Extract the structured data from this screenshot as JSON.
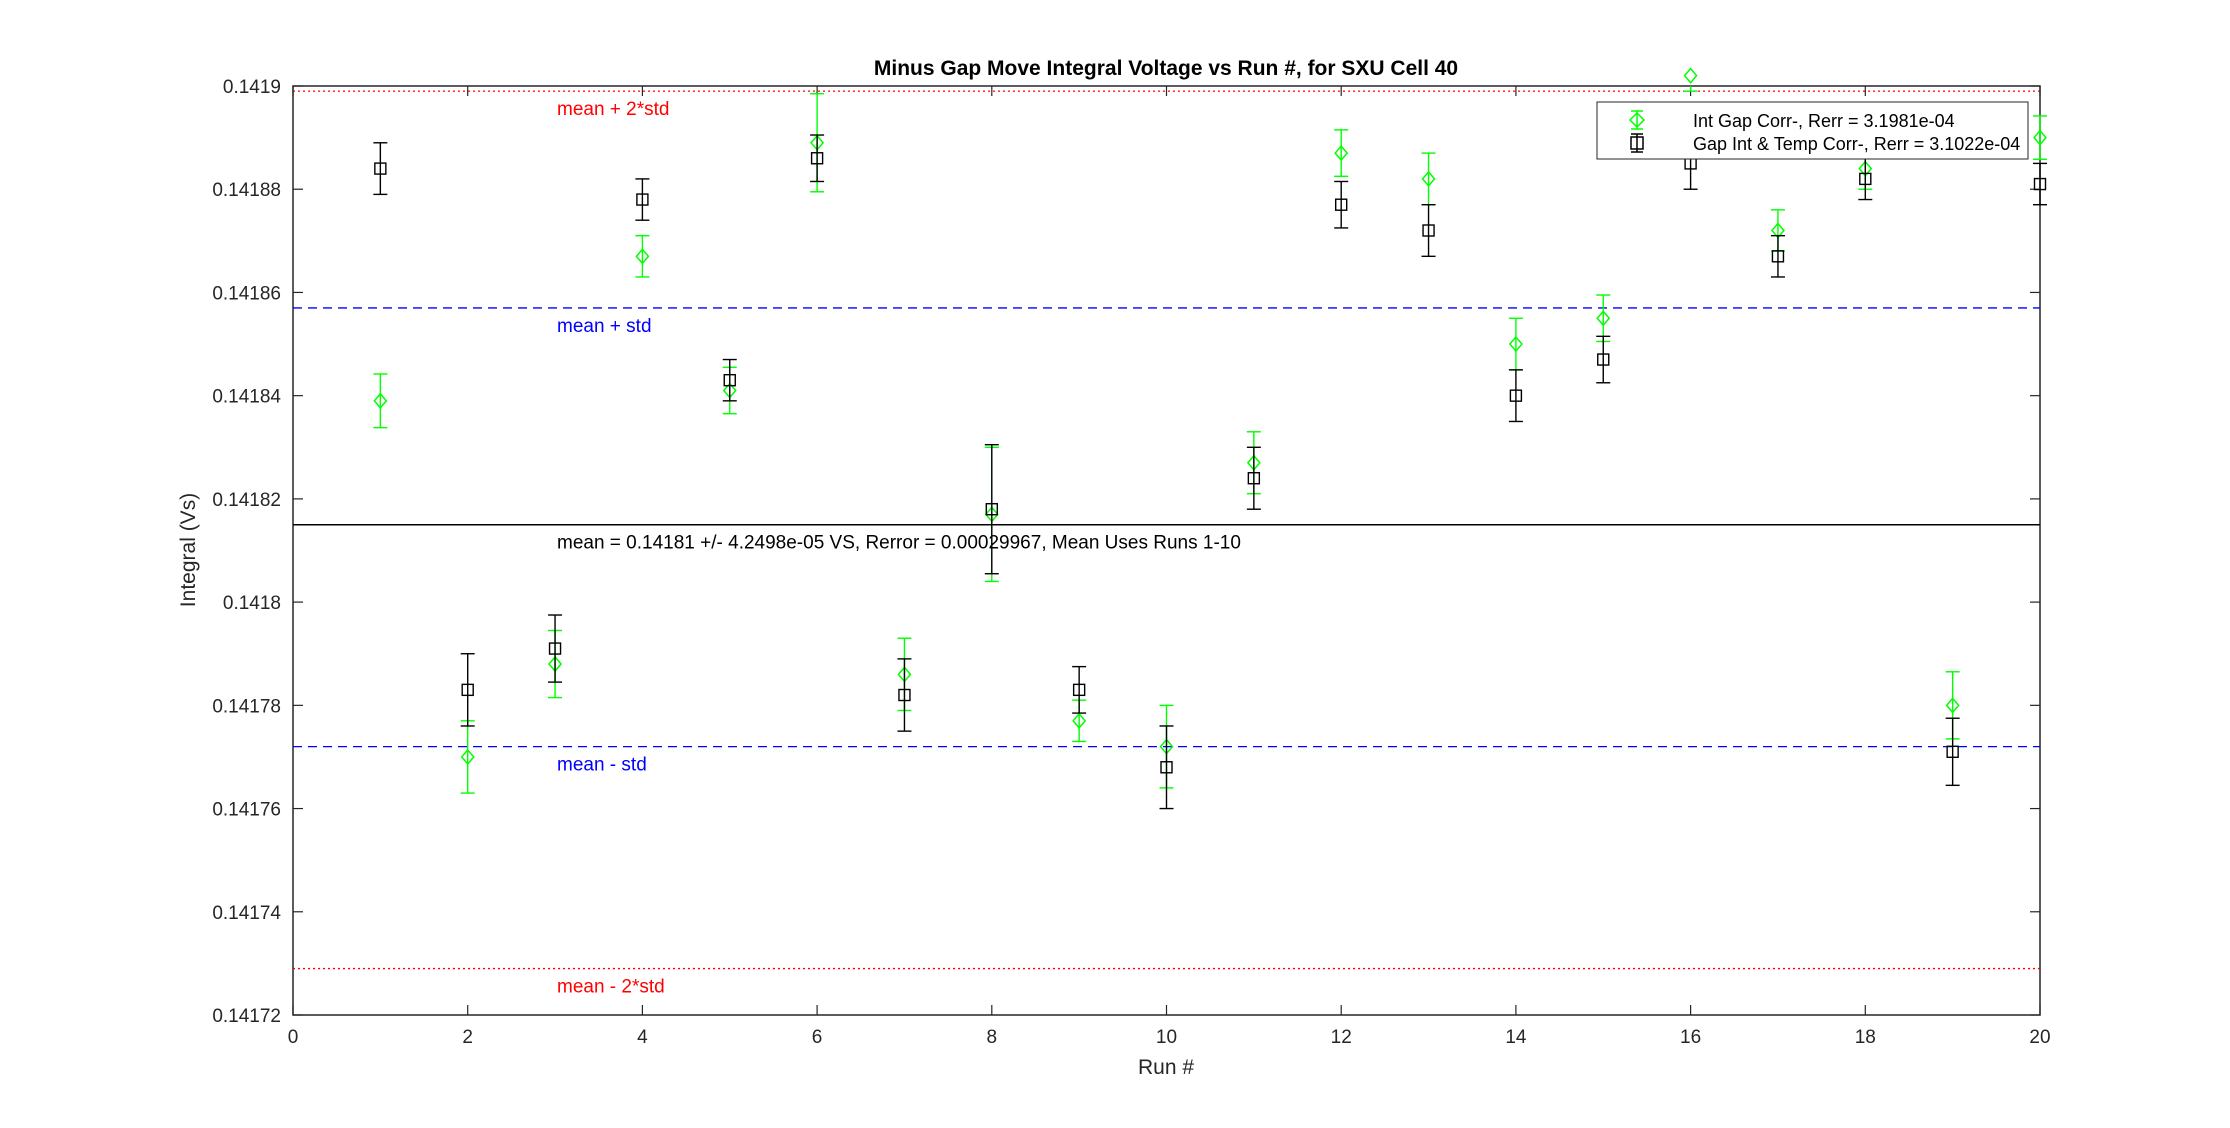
{
  "chart_data": {
    "type": "scatter",
    "title": "Minus Gap Move Integral Voltage vs Run #, for SXU Cell 40",
    "xlabel": "Run #",
    "ylabel": "Integral (Vs)",
    "xlim": [
      0,
      20
    ],
    "ylim": [
      0.14172,
      0.1419
    ],
    "x_ticks": [
      0,
      2,
      4,
      6,
      8,
      10,
      12,
      14,
      16,
      18,
      20
    ],
    "x_tick_labels": [
      "0",
      "2",
      "4",
      "6",
      "8",
      "10",
      "12",
      "14",
      "16",
      "18",
      "20"
    ],
    "y_ticks": [
      0.14172,
      0.14174,
      0.14176,
      0.14178,
      0.1418,
      0.14182,
      0.14184,
      0.14186,
      0.14188,
      0.1419
    ],
    "y_tick_labels": [
      "0.14172",
      "0.14174",
      "0.14176",
      "0.14178",
      "0.1418",
      "0.14182",
      "0.14184",
      "0.14186",
      "0.14188",
      "0.1419"
    ],
    "grid": false,
    "legend_position": "top-right",
    "series": [
      {
        "name": "Int Gap Corr-, Rerr = 3.1981e-04",
        "color": "#00ff00",
        "marker": "diamond",
        "x": [
          1,
          2,
          3,
          4,
          5,
          6,
          7,
          8,
          9,
          10,
          11,
          12,
          13,
          14,
          15,
          16,
          17,
          18,
          19,
          20
        ],
        "y": [
          0.141839,
          0.14177,
          0.141788,
          0.141867,
          0.141841,
          0.141889,
          0.141786,
          0.141817,
          0.141777,
          0.141772,
          0.141827,
          0.141887,
          0.141882,
          0.14185,
          0.141855,
          0.141902,
          0.141872,
          0.141884,
          0.14178,
          0.14189
        ],
        "err": [
          5.2e-06,
          7e-06,
          6.5e-06,
          4e-06,
          4.5e-06,
          9.5e-06,
          7e-06,
          1.3e-05,
          4e-06,
          8e-06,
          6e-06,
          4.5e-06,
          5e-06,
          5e-06,
          4.5e-06,
          3e-06,
          4e-06,
          4e-06,
          6.5e-06,
          4.2e-06
        ]
      },
      {
        "name": "Gap Int & Temp Corr-, Rerr = 3.1022e-04",
        "color": "#000000",
        "marker": "square",
        "x": [
          1,
          3,
          2,
          4,
          5,
          6,
          7,
          8,
          9,
          10,
          11,
          12,
          13,
          14,
          15,
          16,
          17,
          18,
          19,
          20
        ],
        "y": [
          0.141884,
          0.141791,
          0.141783,
          0.141878,
          0.141843,
          0.141886,
          0.141782,
          0.141818,
          0.141783,
          0.141768,
          0.141824,
          0.141877,
          0.141872,
          0.14184,
          0.141847,
          0.141885,
          0.141867,
          0.141882,
          0.141771,
          0.141881
        ],
        "err": [
          5e-06,
          6.5e-06,
          7e-06,
          4e-06,
          4e-06,
          4.5e-06,
          7e-06,
          1.25e-05,
          4.5e-06,
          8e-06,
          6e-06,
          4.5e-06,
          5e-06,
          5e-06,
          4.5e-06,
          5e-06,
          4e-06,
          4e-06,
          6.5e-06,
          4e-06
        ]
      }
    ],
    "reference_lines": [
      {
        "label": "mean + 2*std",
        "y": 0.141899,
        "color": "#ff0000",
        "style": "dotted"
      },
      {
        "label": "mean + std",
        "y": 0.141857,
        "color": "#0000ff",
        "style": "dashed"
      },
      {
        "label": "mean = 0.14181 +/- 4.2498e-05 VS, Rerror = 0.00029967, Mean Uses Runs 1-10",
        "y": 0.141815,
        "color": "#000000",
        "style": "solid"
      },
      {
        "label": "mean - std",
        "y": 0.141772,
        "color": "#0000ff",
        "style": "dashed"
      },
      {
        "label": "mean - 2*std",
        "y": 0.141729,
        "color": "#ff0000",
        "style": "dotted"
      }
    ]
  }
}
